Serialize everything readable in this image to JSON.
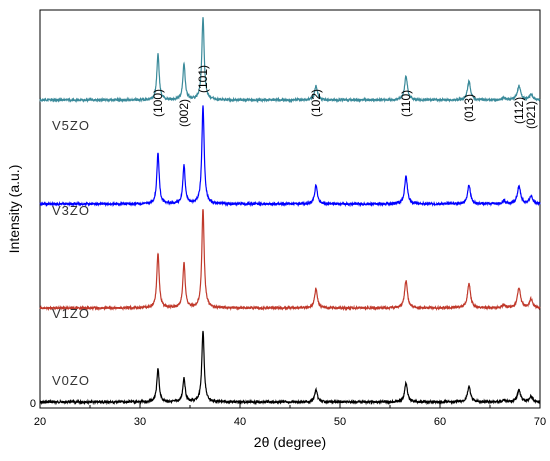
{
  "chart_data": {
    "type": "line",
    "xlabel": "2θ (degree)",
    "ylabel": "Intensity (a.u.)",
    "xlim": [
      20,
      70
    ],
    "xticks": [
      "20",
      "30",
      "40",
      "50",
      "60",
      "70"
    ],
    "yticks": [
      "0"
    ],
    "grid": false,
    "legend": "none",
    "peak_labels": [
      {
        "label": "(100)",
        "x": 31.8
      },
      {
        "label": "(002)",
        "x": 34.4
      },
      {
        "label": "(101)",
        "x": 36.3
      },
      {
        "label": "(102)",
        "x": 47.6
      },
      {
        "label": "(110)",
        "x": 56.6
      },
      {
        "label": "(013)",
        "x": 62.9
      },
      {
        "label": "(112)",
        "x": 67.9
      },
      {
        "label": "(021)",
        "x": 69.1
      }
    ],
    "peaks": [
      {
        "x": 31.8,
        "w": 0.14
      },
      {
        "x": 34.4,
        "w": 0.14
      },
      {
        "x": 36.3,
        "w": 0.14
      },
      {
        "x": 47.6,
        "w": 0.16
      },
      {
        "x": 56.6,
        "w": 0.17
      },
      {
        "x": 62.9,
        "w": 0.18
      },
      {
        "x": 66.4,
        "w": 0.18
      },
      {
        "x": 67.9,
        "w": 0.19
      },
      {
        "x": 69.1,
        "w": 0.19
      }
    ],
    "series": [
      {
        "name": "V0ZO",
        "color": "#000000",
        "offset": 0,
        "intensities": [
          0.3,
          0.22,
          0.65,
          0.11,
          0.17,
          0.14,
          0.02,
          0.11,
          0.05
        ]
      },
      {
        "name": "V1ZO",
        "color": "#c0392b",
        "offset": 94,
        "intensities": [
          0.5,
          0.41,
          0.9,
          0.18,
          0.25,
          0.22,
          0.03,
          0.18,
          0.08
        ]
      },
      {
        "name": "V3ZO",
        "color": "#0000ff",
        "offset": 198,
        "intensities": [
          0.46,
          0.35,
          0.89,
          0.17,
          0.25,
          0.17,
          0.03,
          0.16,
          0.07
        ]
      },
      {
        "name": "V5ZO",
        "color": "#3a8a9a",
        "offset": 302,
        "intensities": [
          0.42,
          0.33,
          0.75,
          0.13,
          0.22,
          0.17,
          0.02,
          0.13,
          0.05
        ]
      }
    ]
  }
}
